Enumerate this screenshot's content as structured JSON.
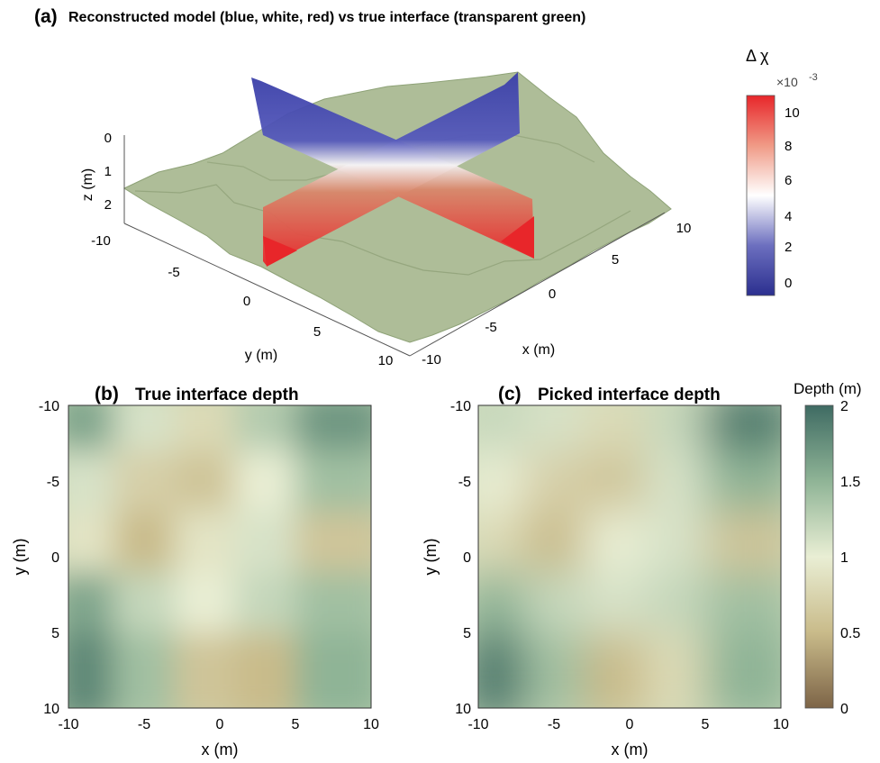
{
  "panel_a": {
    "label": "(a)",
    "title": "Reconstructed model (blue, white, red) vs true interface (transparent green)",
    "zlabel": "z (m)",
    "ylabel": "y (m)",
    "xlabel": "x (m)",
    "z_ticks": [
      "0",
      "1",
      "2"
    ],
    "y_ticks": [
      "-10",
      "-5",
      "0",
      "5",
      "10"
    ],
    "x_ticks": [
      "-10",
      "-5",
      "0",
      "5",
      "10"
    ],
    "colorbar": {
      "title": "Δ χ",
      "exponent": "×10",
      "exponent_power": "-3",
      "ticks": [
        "0",
        "2",
        "4",
        "6",
        "8",
        "10"
      ],
      "colors": [
        "#2b2f8f",
        "#ffffff",
        "#e8262a"
      ]
    },
    "surface_color": "#9daf85",
    "slice_colors": {
      "low": "#3a3fa8",
      "mid": "#f4f2f4",
      "high": "#e8262a"
    }
  },
  "panel_b": {
    "label": "(b)",
    "title": "True interface depth",
    "xlabel": "x (m)",
    "ylabel": "y (m)",
    "x_ticks": [
      "-10",
      "-5",
      "0",
      "5",
      "10"
    ],
    "y_ticks": [
      "-10",
      "-5",
      "0",
      "5",
      "10"
    ]
  },
  "panel_c": {
    "label": "(c)",
    "title": "Picked interface depth",
    "xlabel": "x (m)",
    "ylabel": "y (m)",
    "x_ticks": [
      "-10",
      "-5",
      "0",
      "5",
      "10"
    ],
    "y_ticks": [
      "-10",
      "-5",
      "0",
      "5",
      "10"
    ],
    "colorbar": {
      "title": "Depth (m)",
      "ticks": [
        "0",
        "0.5",
        "1",
        "1.5",
        "2"
      ],
      "colors": [
        "#7d6447",
        "#c9bb8a",
        "#e9eed4",
        "#8fb496",
        "#3f6b63"
      ]
    }
  },
  "chart_data": [
    {
      "type": "heatmap",
      "title": "Reconstructed model (blue, white, red) vs true interface (transparent green)",
      "xlabel": "x (m)",
      "ylabel": "y (m)",
      "zlabel": "z (m)",
      "xlim": [
        -10,
        10
      ],
      "ylim": [
        -10,
        10
      ],
      "zlim": [
        0,
        2
      ],
      "colorbar_label": "Δ χ",
      "colorbar_range": [
        0,
        0.011
      ],
      "colorbar_scale": "×10^-3",
      "colorbar_ticks": [
        0,
        2,
        4,
        6,
        8,
        10
      ]
    },
    {
      "type": "heatmap",
      "title": "True interface depth",
      "xlabel": "x (m)",
      "ylabel": "y (m)",
      "xlim": [
        -10,
        10
      ],
      "ylim": [
        -10,
        10
      ],
      "colorbar_label": "Depth (m)",
      "colorbar_range": [
        0,
        2
      ],
      "depth_grid_5x5": [
        [
          1.6,
          1.1,
          0.8,
          1.3,
          1.7
        ],
        [
          1.1,
          0.7,
          0.6,
          1.0,
          1.4
        ],
        [
          0.9,
          0.5,
          0.9,
          1.1,
          0.6
        ],
        [
          1.6,
          1.2,
          1.0,
          1.2,
          1.4
        ],
        [
          1.8,
          1.4,
          0.6,
          0.5,
          1.5
        ]
      ]
    },
    {
      "type": "heatmap",
      "title": "Picked interface depth",
      "xlabel": "x (m)",
      "ylabel": "y (m)",
      "xlim": [
        -10,
        10
      ],
      "ylim": [
        -10,
        10
      ],
      "colorbar_label": "Depth (m)",
      "colorbar_range": [
        0,
        2
      ],
      "colorbar_ticks": [
        0,
        0.5,
        1,
        1.5,
        2
      ],
      "depth_grid_5x5": [
        [
          1.2,
          1.1,
          0.8,
          1.2,
          1.9
        ],
        [
          1.0,
          0.7,
          0.6,
          1.1,
          1.5
        ],
        [
          0.8,
          0.5,
          1.0,
          1.1,
          0.6
        ],
        [
          1.5,
          1.2,
          1.1,
          1.2,
          1.4
        ],
        [
          1.9,
          1.4,
          0.5,
          0.8,
          1.5
        ]
      ]
    }
  ]
}
